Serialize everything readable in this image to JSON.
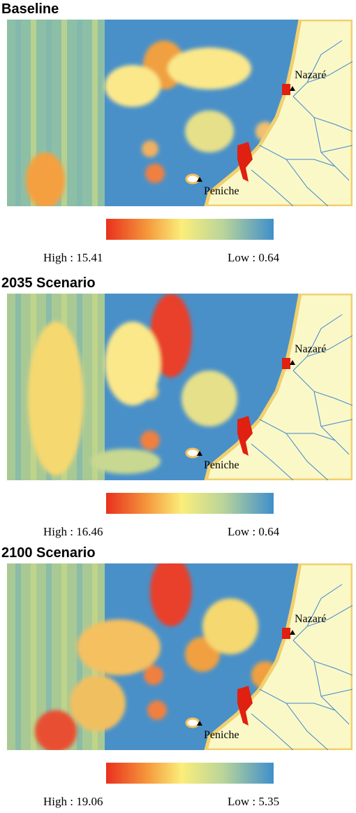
{
  "panels": [
    {
      "title": "Baseline",
      "places": [
        "Nazaré",
        "Peniche"
      ],
      "legend": {
        "high": "High : 15.41",
        "low": "Low : 0.64"
      }
    },
    {
      "title": "2035 Scenario",
      "places": [
        "Nazaré",
        "Peniche"
      ],
      "legend": {
        "high": "High : 16.46",
        "low": "Low : 0.64"
      }
    },
    {
      "title": "2100 Scenario",
      "places": [
        "Nazaré",
        "Peniche"
      ],
      "legend": {
        "high": "High : 19.06",
        "low": "Low : 5.35"
      }
    }
  ]
}
